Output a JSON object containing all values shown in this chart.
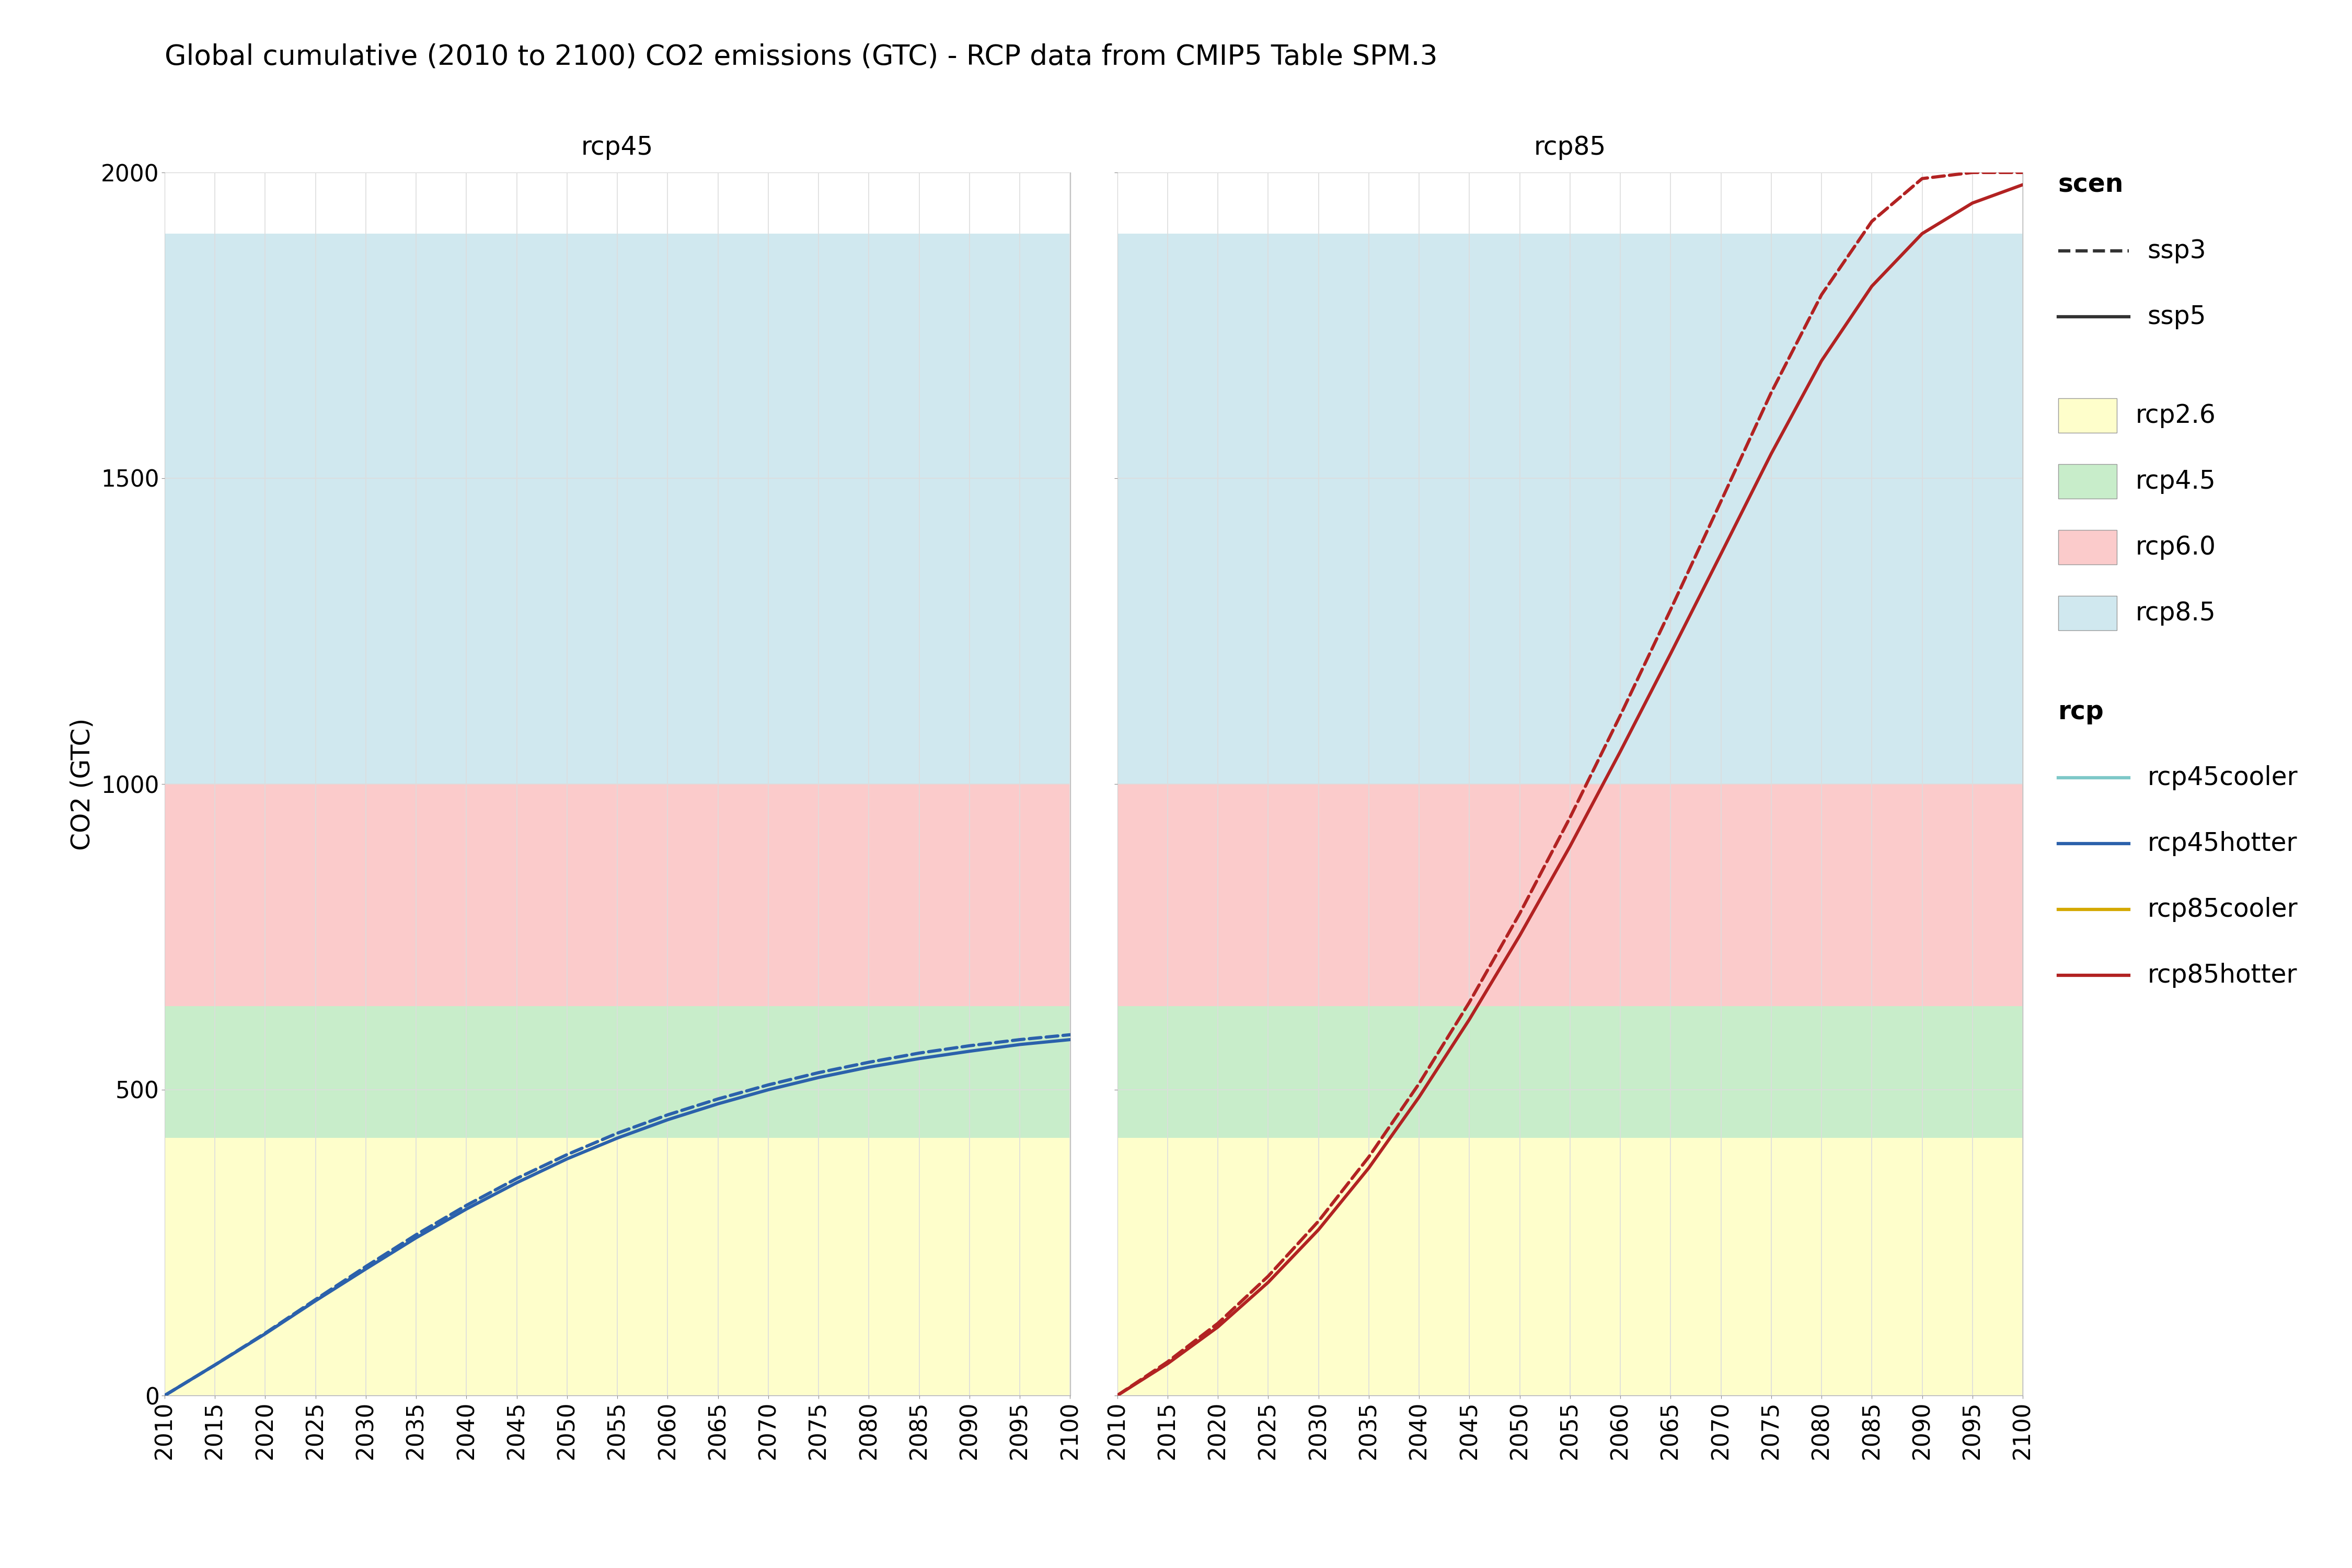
{
  "title": "Global cumulative (2010 to 2100) CO2 emissions (GTC) - RCP data from CMIP5 Table SPM.3",
  "ylabel": "CO2 (GTC)",
  "panels": [
    "rcp45",
    "rcp85"
  ],
  "xlim": [
    2010,
    2100
  ],
  "ylim": [
    0,
    2000
  ],
  "xticks": [
    2010,
    2015,
    2020,
    2025,
    2030,
    2035,
    2040,
    2045,
    2050,
    2055,
    2060,
    2065,
    2070,
    2075,
    2080,
    2085,
    2090,
    2095,
    2100
  ],
  "yticks": [
    0,
    500,
    1000,
    1500,
    2000
  ],
  "bands": [
    {
      "label": "rcp2.6",
      "ymin": 0,
      "ymax": 421,
      "color": "#FEFECB"
    },
    {
      "label": "rcp4.5",
      "ymin": 421,
      "ymax": 637,
      "color": "#C8EDCA"
    },
    {
      "label": "rcp6.0",
      "ymin": 637,
      "ymax": 1000,
      "color": "#FBCBCB"
    },
    {
      "label": "rcp8.5",
      "ymin": 1000,
      "ymax": 1900,
      "color": "#D0E8EF"
    }
  ],
  "band_colors_legend": {
    "rcp2.6": "#FEFECB",
    "rcp4.5": "#C8EDCA",
    "rcp6.0": "#FBCBCB",
    "rcp8.5": "#D0E8EF"
  },
  "lines": {
    "rcp45": [
      {
        "key": "rcp45hotter_ssp3",
        "color": "#2B61AB",
        "linestyle": "dashed",
        "scen": "ssp3",
        "rcp": "rcp45hotter",
        "years": [
          2010,
          2015,
          2020,
          2025,
          2030,
          2035,
          2040,
          2045,
          2050,
          2055,
          2060,
          2065,
          2070,
          2075,
          2080,
          2085,
          2090,
          2095,
          2100
        ],
        "values": [
          0,
          50,
          102,
          157,
          211,
          263,
          311,
          355,
          394,
          429,
          459,
          485,
          508,
          528,
          545,
          560,
          572,
          582,
          590
        ]
      },
      {
        "key": "rcp45hotter_ssp5",
        "color": "#2B61AB",
        "linestyle": "solid",
        "scen": "ssp5",
        "rcp": "rcp45hotter",
        "years": [
          2010,
          2015,
          2020,
          2025,
          2030,
          2035,
          2040,
          2045,
          2050,
          2055,
          2060,
          2065,
          2070,
          2075,
          2080,
          2085,
          2090,
          2095,
          2100
        ],
        "values": [
          0,
          50,
          101,
          155,
          207,
          258,
          305,
          348,
          387,
          421,
          451,
          477,
          500,
          520,
          537,
          551,
          563,
          574,
          582
        ]
      }
    ],
    "rcp85": [
      {
        "key": "rcp85hotter_ssp3",
        "color": "#B22222",
        "linestyle": "dashed",
        "scen": "ssp3",
        "rcp": "rcp85hotter",
        "years": [
          2010,
          2015,
          2020,
          2025,
          2030,
          2035,
          2040,
          2045,
          2050,
          2055,
          2060,
          2065,
          2070,
          2075,
          2080,
          2085,
          2090,
          2095,
          2100
        ],
        "values": [
          0,
          55,
          118,
          195,
          285,
          390,
          510,
          643,
          788,
          945,
          1112,
          1285,
          1462,
          1640,
          1800,
          1920,
          1990,
          2020,
          2040
        ]
      },
      {
        "key": "rcp85hotter_ssp5",
        "color": "#B22222",
        "linestyle": "solid",
        "scen": "ssp5",
        "rcp": "rcp85hotter",
        "years": [
          2010,
          2015,
          2020,
          2025,
          2030,
          2035,
          2040,
          2045,
          2050,
          2055,
          2060,
          2065,
          2070,
          2075,
          2080,
          2085,
          2090,
          2095,
          2100
        ],
        "values": [
          0,
          52,
          112,
          185,
          271,
          372,
          488,
          615,
          752,
          898,
          1053,
          1213,
          1376,
          1540,
          1692,
          1814,
          1900,
          1950,
          1980
        ]
      }
    ]
  },
  "legend_scen": [
    {
      "label": "ssp3",
      "linestyle": "dashed",
      "color": "#444444"
    },
    {
      "label": "ssp5",
      "linestyle": "solid",
      "color": "#444444"
    }
  ],
  "legend_rcp": [
    {
      "label": "rcp45cooler",
      "color": "#7EC8C8"
    },
    {
      "label": "rcp45hotter",
      "color": "#2B61AB"
    },
    {
      "label": "rcp85cooler",
      "color": "#D4A800"
    },
    {
      "label": "rcp85hotter",
      "color": "#B22222"
    }
  ],
  "panel_title_bg": "#D9D9D9",
  "panel_bg": "#FFFFFF",
  "plot_area_bg": "#FFFFFF",
  "grid_color": "#DDDDDD",
  "outer_bg": "#FFFFFF",
  "title_fontsize": 11,
  "axis_label_fontsize": 10,
  "tick_fontsize": 9,
  "legend_fontsize": 10,
  "panel_title_fontsize": 10,
  "linewidth": 2.2
}
